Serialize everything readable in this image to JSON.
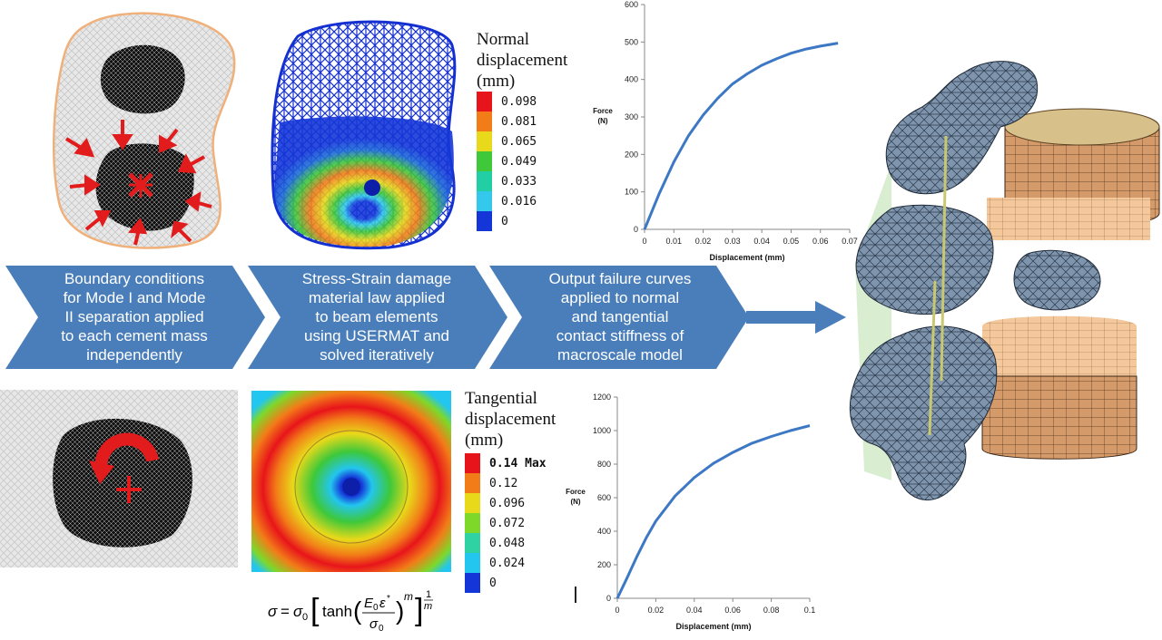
{
  "flow": {
    "step1": "Boundary conditions for Mode I and Mode II separation applied to each cement mass independently",
    "step2": "Stress-Strain damage material law applied to beam elements using USERMAT and solved iteratively",
    "step3": "Output failure curves applied to normal and tangential contact stiffness of macroscale model",
    "step1_lines": [
      "Boundary conditions",
      "for Mode I and Mode",
      "II separation applied",
      "to each cement mass",
      "independently"
    ],
    "step2_lines": [
      "Stress-Strain damage",
      "material law applied",
      "to beam elements",
      "using USERMAT and",
      "solved iteratively"
    ],
    "step3_lines": [
      "Output failure curves",
      "applied to normal",
      "and tangential",
      "contact stiffness of",
      "macroscale model"
    ]
  },
  "normal_legend": {
    "title_lines": [
      "Normal",
      "displacement",
      "(mm)"
    ],
    "values": [
      "0.098",
      "0.081",
      "0.065",
      "0.049",
      "0.033",
      "0.016",
      "0"
    ],
    "colors": [
      "#e8141b",
      "#f27c18",
      "#e8d91a",
      "#3ec83a",
      "#22cfa4",
      "#33c8ec",
      "#1436d8"
    ]
  },
  "tangential_legend": {
    "title_lines": [
      "Tangential",
      "displacement",
      "(mm)"
    ],
    "values": [
      "0.14 Max",
      "0.12",
      "0.096",
      "0.072",
      "0.048",
      "0.024",
      "0"
    ],
    "colors": [
      "#e8141b",
      "#f27c18",
      "#e8d91a",
      "#7ed82a",
      "#2fd3a3",
      "#23c6ee",
      "#1436d8"
    ]
  },
  "equation": {
    "text": "σ = σ0 [ tanh ( E0 ε* / σ0 )^m ]^(1/m)"
  },
  "chart_data": [
    {
      "type": "line",
      "xlabel": "Displacement (mm)",
      "ylabel": "Force (N)",
      "xlim": [
        0,
        0.07
      ],
      "ylim": [
        0,
        600
      ],
      "xticks": [
        "0",
        "0.01",
        "0.02",
        "0.03",
        "0.04",
        "0.05",
        "0.06",
        "0.07"
      ],
      "yticks": [
        "0",
        "100",
        "200",
        "300",
        "400",
        "500",
        "600"
      ],
      "grid": false,
      "series_color": "#3d78c4",
      "x": [
        0,
        0.005,
        0.01,
        0.015,
        0.02,
        0.025,
        0.03,
        0.035,
        0.04,
        0.045,
        0.05,
        0.055,
        0.06,
        0.066
      ],
      "y": [
        0,
        95,
        180,
        250,
        305,
        350,
        388,
        415,
        438,
        455,
        470,
        481,
        489,
        497
      ]
    },
    {
      "type": "line",
      "xlabel": "Displacement (mm)",
      "ylabel": "Force (N)",
      "xlim": [
        0,
        0.1
      ],
      "ylim": [
        0,
        1200
      ],
      "xticks": [
        "0",
        "0.02",
        "0.04",
        "0.06",
        "0.08",
        "0.1"
      ],
      "yticks": [
        "0",
        "200",
        "400",
        "600",
        "800",
        "1000",
        "1200"
      ],
      "grid": false,
      "series_color": "#3d78c4",
      "x": [
        0,
        0.005,
        0.01,
        0.015,
        0.02,
        0.03,
        0.04,
        0.05,
        0.06,
        0.07,
        0.08,
        0.09,
        0.1
      ],
      "y": [
        0,
        120,
        245,
        360,
        460,
        610,
        720,
        805,
        870,
        925,
        965,
        1000,
        1030
      ]
    }
  ]
}
